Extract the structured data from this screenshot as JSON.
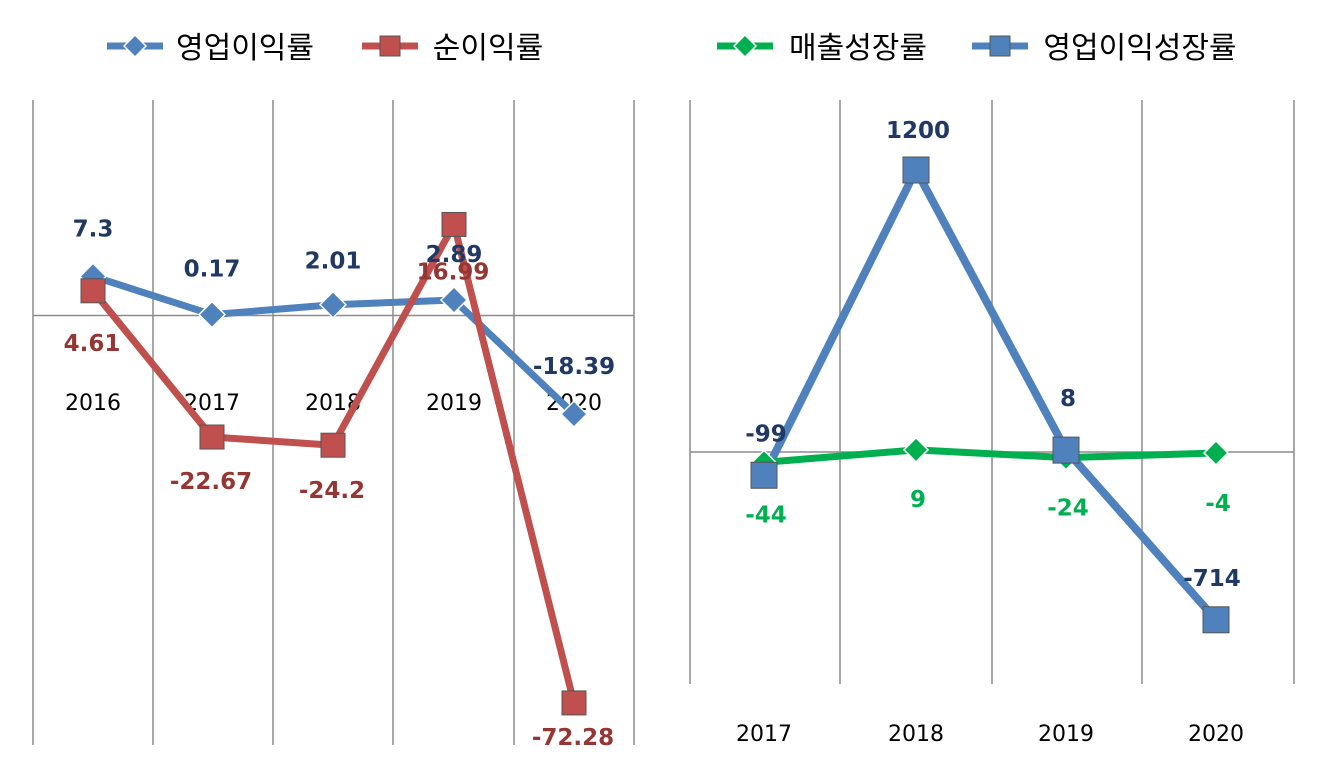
{
  "colors": {
    "blue": "#4f81bd",
    "blue_label": "#1f3864",
    "red": "#c0504d",
    "red_label": "#943634",
    "green": "#00b050",
    "gridline": "#8c8c8c",
    "background": "#ffffff"
  },
  "chart_data": [
    {
      "type": "line",
      "categories": [
        "2016",
        "2017",
        "2018",
        "2019",
        "2020"
      ],
      "series": [
        {
          "name": "영업이익률",
          "marker": "diamond",
          "color": "#4f81bd",
          "values": [
            7.3,
            0.17,
            2.01,
            2.89,
            -18.39
          ],
          "labels": [
            "7.3",
            "0.17",
            "2.01",
            "2.89",
            "-18.39"
          ]
        },
        {
          "name": "순이익률",
          "marker": "square",
          "color": "#c0504d",
          "values": [
            4.61,
            -22.67,
            -24.2,
            16.99,
            -72.28
          ],
          "labels": [
            "4.61",
            "-22.67",
            "-24.2",
            "16.99",
            "-72.28"
          ]
        }
      ],
      "ylim": [
        -90,
        40
      ],
      "grid": "vertical",
      "legend": "top",
      "tick_position": "at-zero-line"
    },
    {
      "type": "line",
      "categories": [
        "2017",
        "2018",
        "2019",
        "2020"
      ],
      "series": [
        {
          "name": "매출성장률",
          "marker": "diamond",
          "color": "#00b050",
          "values": [
            -44,
            9,
            -24,
            -4
          ],
          "labels": [
            "-44",
            "9",
            "-24",
            "-4"
          ]
        },
        {
          "name": "영업이익성장률",
          "marker": "square",
          "color": "#4f81bd",
          "values": [
            -99,
            1200,
            8,
            -714
          ],
          "labels": [
            "-99",
            "1200",
            "8",
            "-714"
          ]
        }
      ],
      "ylim": [
        -1000,
        1500
      ],
      "grid": "vertical",
      "legend": "top",
      "tick_position": "bottom"
    }
  ]
}
